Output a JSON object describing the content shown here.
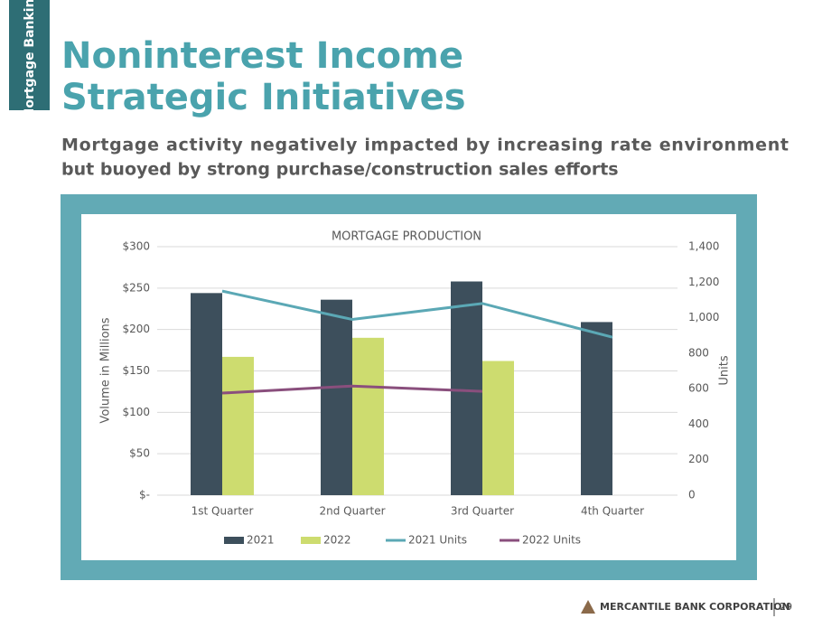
{
  "section_tab": "Mortgage Banking",
  "header": {
    "title_lines": [
      "Noninterest Income",
      "Strategic Initiatives"
    ],
    "subtitle_lines": [
      "Mortgage activity negatively impacted by increasing rate environment",
      "but buoyed by strong purchase/construction sales efforts"
    ]
  },
  "footer": {
    "company": "MERCANTILE BANK CORPORATION",
    "page": "29"
  },
  "chart_data": {
    "type": "bar",
    "title": "MORTGAGE PRODUCTION",
    "categories": [
      "1st Quarter",
      "2nd Quarter",
      "3rd Quarter",
      "4th Quarter"
    ],
    "y_label": "Volume in Millions",
    "y2_label": "Units",
    "series": [
      {
        "name": "2021",
        "color": "#3d4f5c",
        "values": [
          244,
          236,
          258,
          209
        ]
      },
      {
        "name": "2022",
        "color": "#cddc6f",
        "values": [
          167,
          190,
          162,
          null
        ]
      },
      {
        "name": "2021 Units",
        "type": "line",
        "axis": "y2",
        "color": "#5ba8b5",
        "values": [
          1150,
          990,
          1080,
          890
        ]
      },
      {
        "name": "2022 Units",
        "type": "line",
        "axis": "y2",
        "color": "#8a4f7d",
        "values": [
          575,
          615,
          585,
          null
        ]
      }
    ],
    "ylim": [
      0,
      300
    ],
    "yticks": [
      {
        "value": 0,
        "label": "$-"
      },
      {
        "value": 50,
        "label": "$50"
      },
      {
        "value": 100,
        "label": "$100"
      },
      {
        "value": 150,
        "label": "$150"
      },
      {
        "value": 200,
        "label": "$200"
      },
      {
        "value": 250,
        "label": "$250"
      },
      {
        "value": 300,
        "label": "$300"
      }
    ],
    "y2lim": [
      0,
      1400
    ],
    "y2ticks": [
      0,
      200,
      400,
      600,
      800,
      {
        "value": 1000,
        "label": "1,000"
      },
      {
        "value": 1200,
        "label": "1,200"
      },
      {
        "value": 1400,
        "label": "1,400"
      }
    ],
    "grid": true,
    "legend": "bottom"
  }
}
